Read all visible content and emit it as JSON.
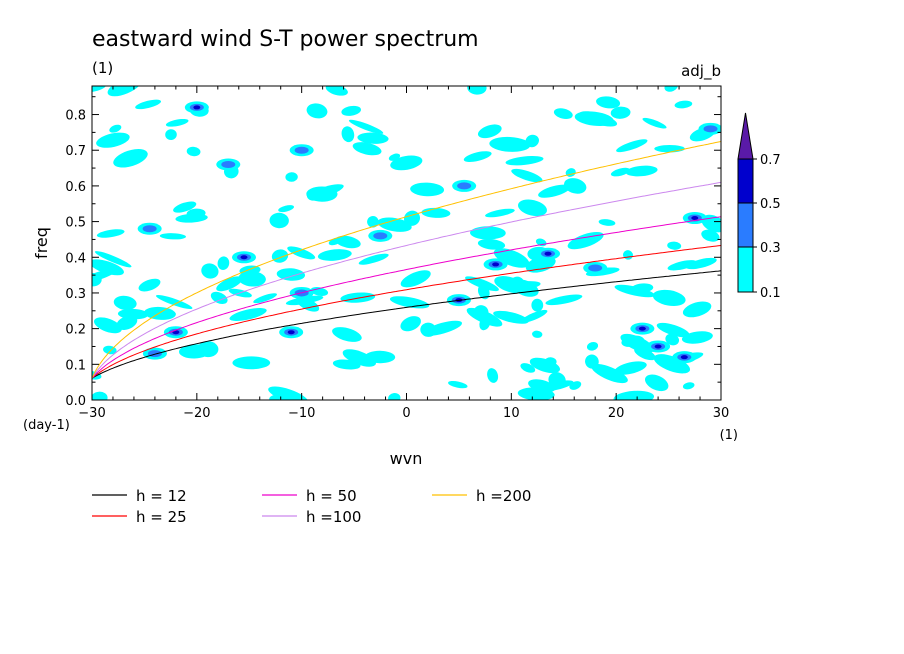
{
  "chart_data": {
    "type": "contour",
    "title": "eastward wind S-T power spectrum",
    "subtitle": "(1)",
    "label_right": "adj_b",
    "xlabel": "wvn",
    "ylabel": "freq",
    "x_unit": "(1)",
    "y_unit": "(day-1)",
    "xlim": [
      -30,
      30
    ],
    "ylim": [
      0,
      0.88
    ],
    "x_ticks": [
      -30,
      -20,
      -10,
      0,
      10,
      20,
      30
    ],
    "x_tick_labels": [
      "−30",
      "−20",
      "−10",
      "0",
      "10",
      "20",
      "30"
    ],
    "y_ticks": [
      0.0,
      0.1,
      0.2,
      0.3,
      0.4,
      0.5,
      0.6,
      0.7,
      0.8
    ],
    "y_tick_labels": [
      "0.0",
      "0.1",
      "0.2",
      "0.3",
      "0.4",
      "0.5",
      "0.6",
      "0.7",
      "0.8"
    ],
    "colorbar": {
      "levels": [
        0.1,
        0.3,
        0.5,
        0.7
      ],
      "labels": [
        "0.1",
        "0.3",
        "0.5",
        "0.7"
      ],
      "colors": [
        "#00ffff",
        "#2a7cff",
        "#0000cd",
        "#5a1aa8"
      ],
      "extend": "max"
    },
    "contour_patches": [
      {
        "x": -24.5,
        "y": 0.48,
        "level": 0.3
      },
      {
        "x": -22,
        "y": 0.19,
        "level": 0.5
      },
      {
        "x": -20,
        "y": 0.82,
        "level": 0.5
      },
      {
        "x": -17,
        "y": 0.66,
        "level": 0.3
      },
      {
        "x": -15.5,
        "y": 0.4,
        "level": 0.5
      },
      {
        "x": -11,
        "y": 0.19,
        "level": 0.5
      },
      {
        "x": -10,
        "y": 0.3,
        "level": 0.3
      },
      {
        "x": -10,
        "y": 0.7,
        "level": 0.3
      },
      {
        "x": -24,
        "y": 0.13,
        "level": 0.3
      },
      {
        "x": -2.5,
        "y": 0.46,
        "level": 0.3
      },
      {
        "x": 5,
        "y": 0.28,
        "level": 0.5
      },
      {
        "x": 5.5,
        "y": 0.6,
        "level": 0.3
      },
      {
        "x": 8.5,
        "y": 0.38,
        "level": 0.5
      },
      {
        "x": 13.5,
        "y": 0.41,
        "level": 0.5
      },
      {
        "x": 18,
        "y": 0.37,
        "level": 0.3
      },
      {
        "x": 22.5,
        "y": 0.2,
        "level": 0.5
      },
      {
        "x": 24,
        "y": 0.15,
        "level": 0.5
      },
      {
        "x": 26.5,
        "y": 0.12,
        "level": 0.5
      },
      {
        "x": 27.5,
        "y": 0.51,
        "level": 0.5
      },
      {
        "x": 29,
        "y": 0.76,
        "level": 0.3
      }
    ],
    "series": [
      {
        "name": "h = 12",
        "color": "#000000",
        "equiv_depth": 12
      },
      {
        "name": "h = 25",
        "color": "#ff0000",
        "equiv_depth": 25
      },
      {
        "name": "h = 50",
        "color": "#ee00cc",
        "equiv_depth": 50
      },
      {
        "name": "h =100",
        "color": "#cc88ee",
        "equiv_depth": 100
      },
      {
        "name": "h =200",
        "color": "#ffc000",
        "equiv_depth": 200
      }
    ]
  }
}
